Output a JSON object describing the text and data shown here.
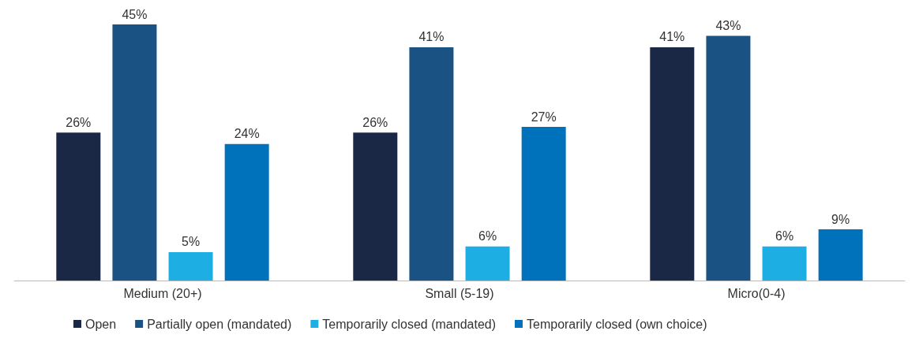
{
  "chart_data": {
    "type": "bar",
    "categories": [
      "Medium (20+)",
      "Small (5-19)",
      "Micro(0-4)"
    ],
    "series": [
      {
        "name": "Open",
        "color": "#1b2845",
        "values": [
          26,
          26,
          41
        ],
        "value_labels": [
          "26%",
          "26%",
          "41%"
        ]
      },
      {
        "name": "Partially open (mandated)",
        "color": "#1a5283",
        "values": [
          45,
          41,
          43
        ],
        "value_labels": [
          "45%",
          "41%",
          "43%"
        ]
      },
      {
        "name": "Temporarily closed (mandated)",
        "color": "#1daee3",
        "values": [
          5,
          6,
          6
        ],
        "value_labels": [
          "5%",
          "6%",
          "6%"
        ]
      },
      {
        "name": "Temporarily closed (own choice)",
        "color": "#0072bc",
        "values": [
          24,
          27,
          9
        ],
        "value_labels": [
          "24%",
          "27%",
          "9%"
        ]
      }
    ],
    "legend": "bottom"
  }
}
